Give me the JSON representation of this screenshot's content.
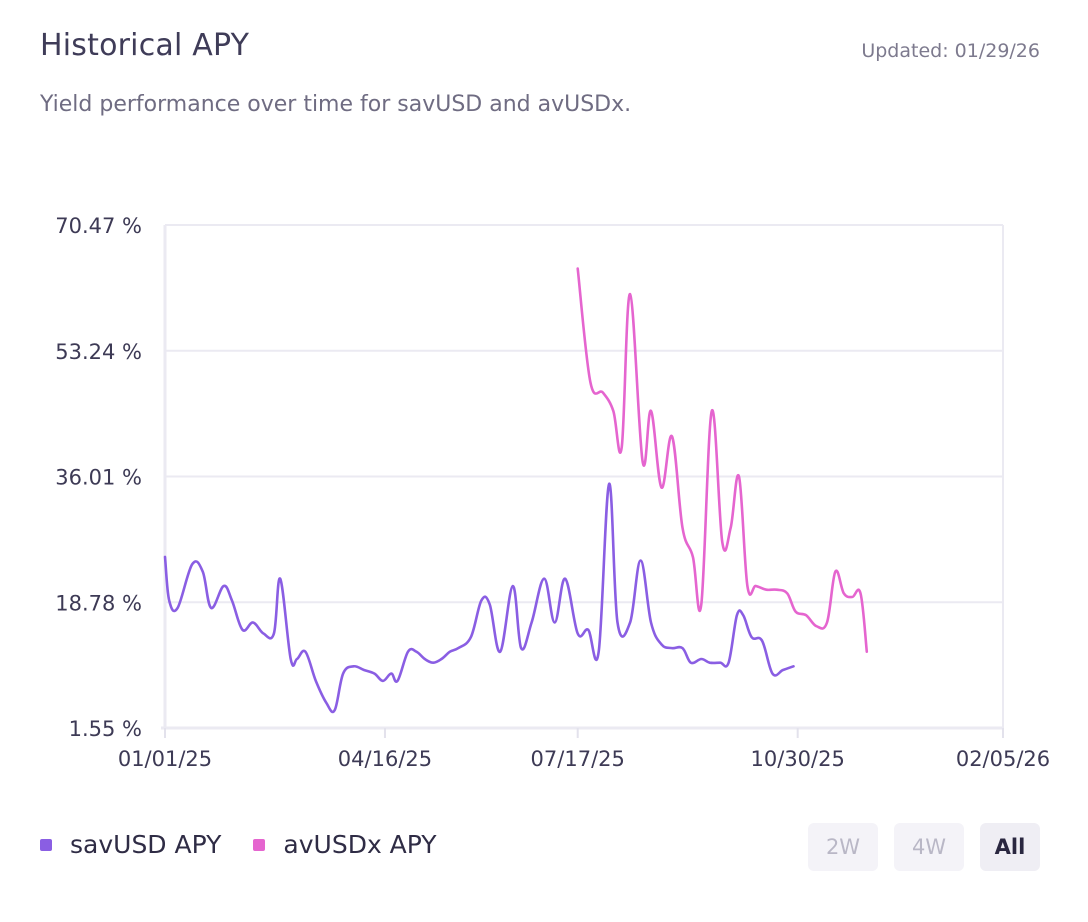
{
  "header": {
    "title": "Historical APY",
    "updated": "Updated: 01/29/26",
    "subtitle": "Yield performance over time for savUSD and avUSDx."
  },
  "legend": {
    "items": [
      {
        "label": "savUSD APY",
        "color": "#8a5ee3"
      },
      {
        "label": "avUSDx APY",
        "color": "#e565cf"
      }
    ]
  },
  "range_buttons": {
    "two_weeks": "2W",
    "four_weeks": "4W",
    "all": "All",
    "active": "All"
  },
  "chart_data": {
    "type": "line",
    "title": "Historical APY",
    "xlabel": "",
    "ylabel": "",
    "x_ticks": [
      {
        "label": "01/01/25",
        "day": 0
      },
      {
        "label": "04/16/25",
        "day": 105
      },
      {
        "label": "07/17/25",
        "day": 197
      },
      {
        "label": "10/30/25",
        "day": 302
      },
      {
        "label": "02/05/26",
        "day": 400
      }
    ],
    "y_ticks": [
      {
        "label": "70.47 %",
        "value": 70.47
      },
      {
        "label": "53.24 %",
        "value": 53.24
      },
      {
        "label": "36.01 %",
        "value": 36.01
      },
      {
        "label": "18.78 %",
        "value": 18.78
      },
      {
        "label": "1.55 %",
        "value": 1.55
      }
    ],
    "xlim": [
      0,
      400
    ],
    "ylim": [
      1.55,
      70.47
    ],
    "grid": true,
    "series": [
      {
        "name": "savUSD APY",
        "color": "#8a5ee3",
        "points": [
          [
            0,
            25
          ],
          [
            2,
            19
          ],
          [
            6,
            18
          ],
          [
            13,
            24
          ],
          [
            18,
            23
          ],
          [
            22,
            18
          ],
          [
            28,
            21
          ],
          [
            32,
            19
          ],
          [
            37,
            15
          ],
          [
            42,
            16
          ],
          [
            47,
            14.5
          ],
          [
            52,
            14.5
          ],
          [
            55,
            22
          ],
          [
            60,
            11
          ],
          [
            63,
            11
          ],
          [
            67,
            12
          ],
          [
            72,
            8
          ],
          [
            77,
            5
          ],
          [
            81,
            4
          ],
          [
            85,
            9
          ],
          [
            90,
            10
          ],
          [
            95,
            9.5
          ],
          [
            100,
            9
          ],
          [
            104,
            8
          ],
          [
            108,
            9
          ],
          [
            111,
            8
          ],
          [
            116,
            12
          ],
          [
            120,
            12
          ],
          [
            124,
            11
          ],
          [
            128,
            10.5
          ],
          [
            132,
            11
          ],
          [
            136,
            12
          ],
          [
            140,
            12.5
          ],
          [
            146,
            14
          ],
          [
            151,
            19
          ],
          [
            155,
            18.5
          ],
          [
            160,
            12
          ],
          [
            166,
            21
          ],
          [
            170,
            12.5
          ],
          [
            175,
            16
          ],
          [
            181,
            22
          ],
          [
            186,
            16
          ],
          [
            191,
            22
          ],
          [
            197,
            14.5
          ],
          [
            202,
            15
          ],
          [
            207,
            12
          ],
          [
            212,
            35
          ],
          [
            216,
            16
          ],
          [
            222,
            16
          ],
          [
            227,
            24.5
          ],
          [
            232,
            16
          ],
          [
            237,
            13
          ],
          [
            242,
            12.5
          ],
          [
            247,
            12.5
          ],
          [
            251,
            10.5
          ],
          [
            256,
            11
          ],
          [
            260,
            10.5
          ],
          [
            265,
            10.5
          ],
          [
            269,
            10.5
          ],
          [
            273,
            17
          ],
          [
            276,
            17
          ],
          [
            280,
            14
          ],
          [
            285,
            13.5
          ],
          [
            290,
            9
          ],
          [
            295,
            9.5
          ],
          [
            300,
            10
          ]
        ]
      },
      {
        "name": "avUSDx APY",
        "color": "#e565cf",
        "points": [
          [
            197,
            64.5
          ],
          [
            203,
            49
          ],
          [
            209,
            47.5
          ],
          [
            214,
            45
          ],
          [
            218,
            40
          ],
          [
            222,
            61
          ],
          [
            228,
            38
          ],
          [
            232,
            45
          ],
          [
            237,
            34.5
          ],
          [
            242,
            41.5
          ],
          [
            247,
            29
          ],
          [
            252,
            25
          ],
          [
            256,
            18.5
          ],
          [
            261,
            45
          ],
          [
            266,
            27
          ],
          [
            270,
            29
          ],
          [
            274,
            36
          ],
          [
            278,
            21
          ],
          [
            282,
            21
          ],
          [
            287,
            20.5
          ],
          [
            292,
            20.5
          ],
          [
            297,
            20
          ],
          [
            301,
            17.5
          ],
          [
            306,
            17
          ],
          [
            311,
            15.5
          ],
          [
            316,
            16
          ],
          [
            320,
            23
          ],
          [
            324,
            20
          ],
          [
            328,
            19.5
          ],
          [
            332,
            20
          ],
          [
            335,
            12
          ]
        ]
      }
    ]
  }
}
